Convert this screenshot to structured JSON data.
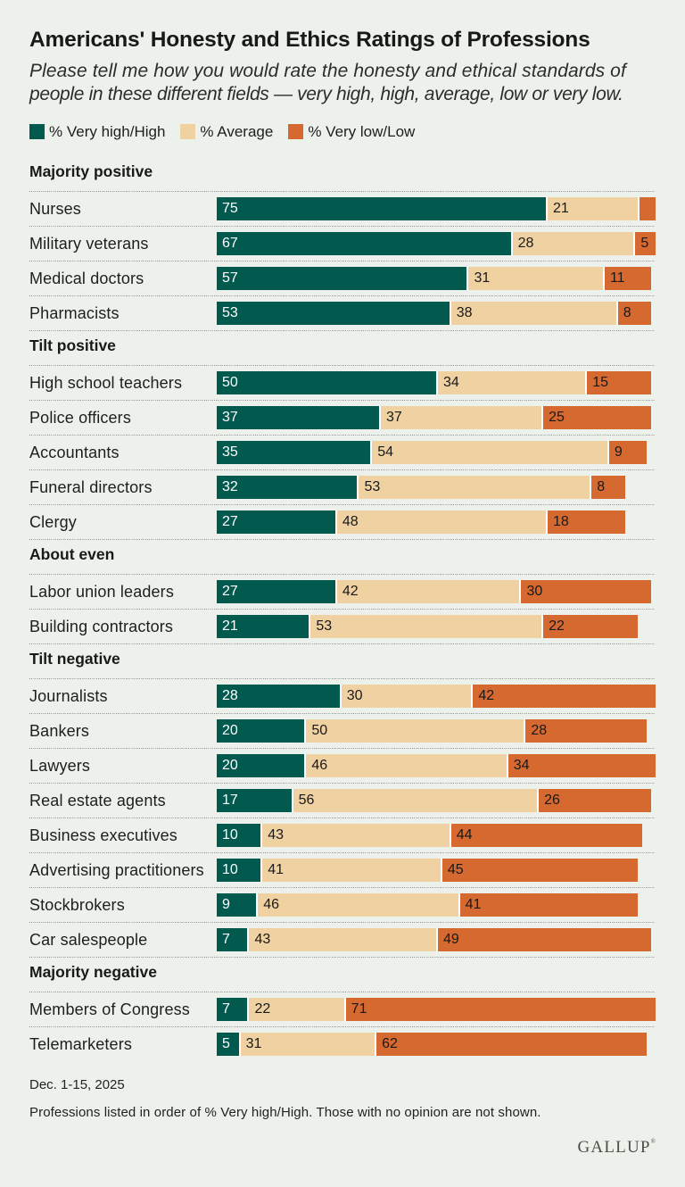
{
  "title": "Americans' Honesty and Ethics Ratings of Professions",
  "subtitle_lines": [
    "Please tell me how you would rate the honesty and ethical standards of",
    "people in these different fields — very high, high, average, low or very low."
  ],
  "legend": [
    {
      "name": "very-high-high",
      "label": "% Very high/High",
      "color": "#02594e"
    },
    {
      "name": "average",
      "label": "% Average",
      "color": "#f0d2a2"
    },
    {
      "name": "very-low-low",
      "label": "% Very low/Low",
      "color": "#d6692f"
    }
  ],
  "chart_data": {
    "type": "bar",
    "orientation": "horizontal",
    "stacked": true,
    "unit": "% of U.S. adults",
    "x_range": [
      0,
      100
    ],
    "min_value_for_label": 5,
    "series_names": [
      "% Very high/High",
      "% Average",
      "% Very low/Low"
    ],
    "series_colors": [
      "#02594e",
      "#f0d2a2",
      "#d6692f"
    ],
    "series_label_colors": [
      "#ffffff",
      "#191919",
      "#191919"
    ],
    "groups": [
      {
        "section": "Majority positive",
        "rows": [
          {
            "label": "Nurses",
            "values": [
              75,
              21,
              4
            ]
          },
          {
            "label": "Military veterans",
            "values": [
              67,
              28,
              5
            ]
          },
          {
            "label": "Medical doctors",
            "values": [
              57,
              31,
              11
            ]
          },
          {
            "label": "Pharmacists",
            "values": [
              53,
              38,
              8
            ]
          }
        ]
      },
      {
        "section": "Tilt positive",
        "rows": [
          {
            "label": "High school teachers",
            "values": [
              50,
              34,
              15
            ]
          },
          {
            "label": "Police officers",
            "values": [
              37,
              37,
              25
            ]
          },
          {
            "label": "Accountants",
            "values": [
              35,
              54,
              9
            ]
          },
          {
            "label": "Funeral directors",
            "values": [
              32,
              53,
              8
            ]
          },
          {
            "label": "Clergy",
            "values": [
              27,
              48,
              18
            ]
          }
        ]
      },
      {
        "section": "About even",
        "rows": [
          {
            "label": "Labor union leaders",
            "values": [
              27,
              42,
              30
            ]
          },
          {
            "label": "Building contractors",
            "values": [
              21,
              53,
              22
            ]
          }
        ]
      },
      {
        "section": "Tilt negative",
        "rows": [
          {
            "label": "Journalists",
            "values": [
              28,
              30,
              42
            ]
          },
          {
            "label": "Bankers",
            "values": [
              20,
              50,
              28
            ]
          },
          {
            "label": "Lawyers",
            "values": [
              20,
              46,
              34
            ]
          },
          {
            "label": "Real estate agents",
            "values": [
              17,
              56,
              26
            ]
          },
          {
            "label": "Business executives",
            "values": [
              10,
              43,
              44
            ]
          },
          {
            "label": "Advertising practitioners",
            "values": [
              10,
              41,
              45
            ]
          },
          {
            "label": "Stockbrokers",
            "values": [
              9,
              46,
              41
            ]
          },
          {
            "label": "Car salespeople",
            "values": [
              7,
              43,
              49
            ]
          }
        ]
      },
      {
        "section": "Majority negative",
        "rows": [
          {
            "label": "Members of Congress",
            "values": [
              7,
              22,
              71
            ]
          },
          {
            "label": "Telemarketers",
            "values": [
              5,
              31,
              62
            ]
          }
        ]
      }
    ]
  },
  "footer": {
    "date": "Dec. 1-15, 2025",
    "note": "Professions listed in order of % Very high/High. Those with no opinion are not shown."
  },
  "brand": {
    "logo": "GALLUP",
    "mark": "®"
  },
  "colors": {
    "background": "#edf1ec",
    "separator": "#8f958e",
    "title": "#191919",
    "brand": "#4d4d48"
  }
}
